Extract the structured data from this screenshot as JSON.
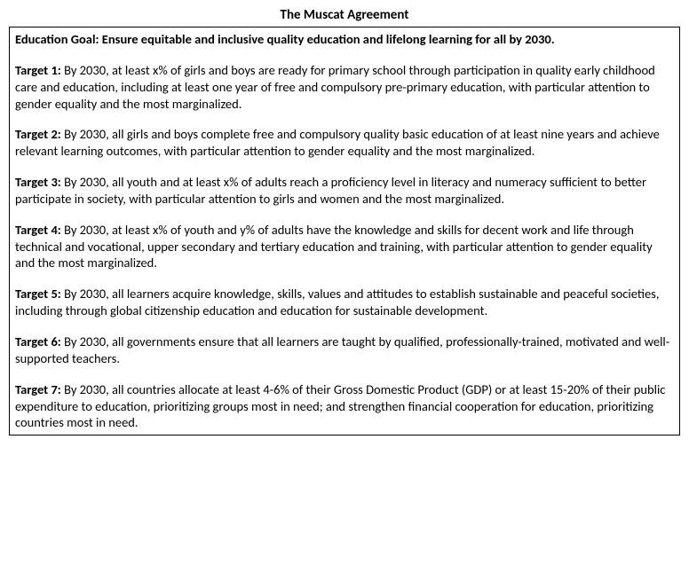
{
  "title": "The Muscat Agreement",
  "goal": "Education Goal: Ensure equitable and inclusive quality education and lifelong learning for all by 2030.",
  "targets": [
    {
      "label": "Target 1:",
      "text": " By 2030, at least x% of girls and boys are ready for primary school through participation in quality early childhood care and education, including at least one year of free and compulsory pre-primary education, with particular attention to gender equality and the most marginalized."
    },
    {
      "label": "Target 2:",
      "text": " By 2030, all girls and boys complete free and compulsory quality basic education of at least nine years and achieve relevant learning outcomes, with particular attention to gender equality and the most marginalized."
    },
    {
      "label": "Target 3:",
      "text": " By 2030, all youth and at least x% of adults reach a proficiency level in literacy and numeracy sufficient to better participate in society, with particular attention to girls and women and the most marginalized."
    },
    {
      "label": "Target 4:",
      "text": " By 2030, at least x% of youth and y% of adults have the knowledge and skills for decent work and life through technical and vocational, upper secondary and tertiary education and training, with particular attention to gender equality and the most marginalized."
    },
    {
      "label": "Target 5:",
      "text": " By 2030, all learners acquire knowledge, skills, values and attitudes to establish sustainable and peaceful societies, including through global citizenship education and education for sustainable development."
    },
    {
      "label": "Target 6:",
      "text": " By 2030, all governments ensure that all learners are taught by qualified, professionally-trained, motivated and well-supported teachers."
    },
    {
      "label": "Target 7:",
      "text": " By 2030, all countries allocate at least 4-6% of their Gross Domestic Product (GDP) or at least 15-20% of their public expenditure to education, prioritizing groups most in need; and strengthen financial cooperation for education, prioritizing countries most in need."
    }
  ],
  "colors": {
    "text": "#000000",
    "background": "#ffffff",
    "border": "#000000"
  },
  "typography": {
    "font_family": "Calibri",
    "title_fontsize": 15,
    "body_fontsize": 14.5,
    "line_height": 1.3
  }
}
